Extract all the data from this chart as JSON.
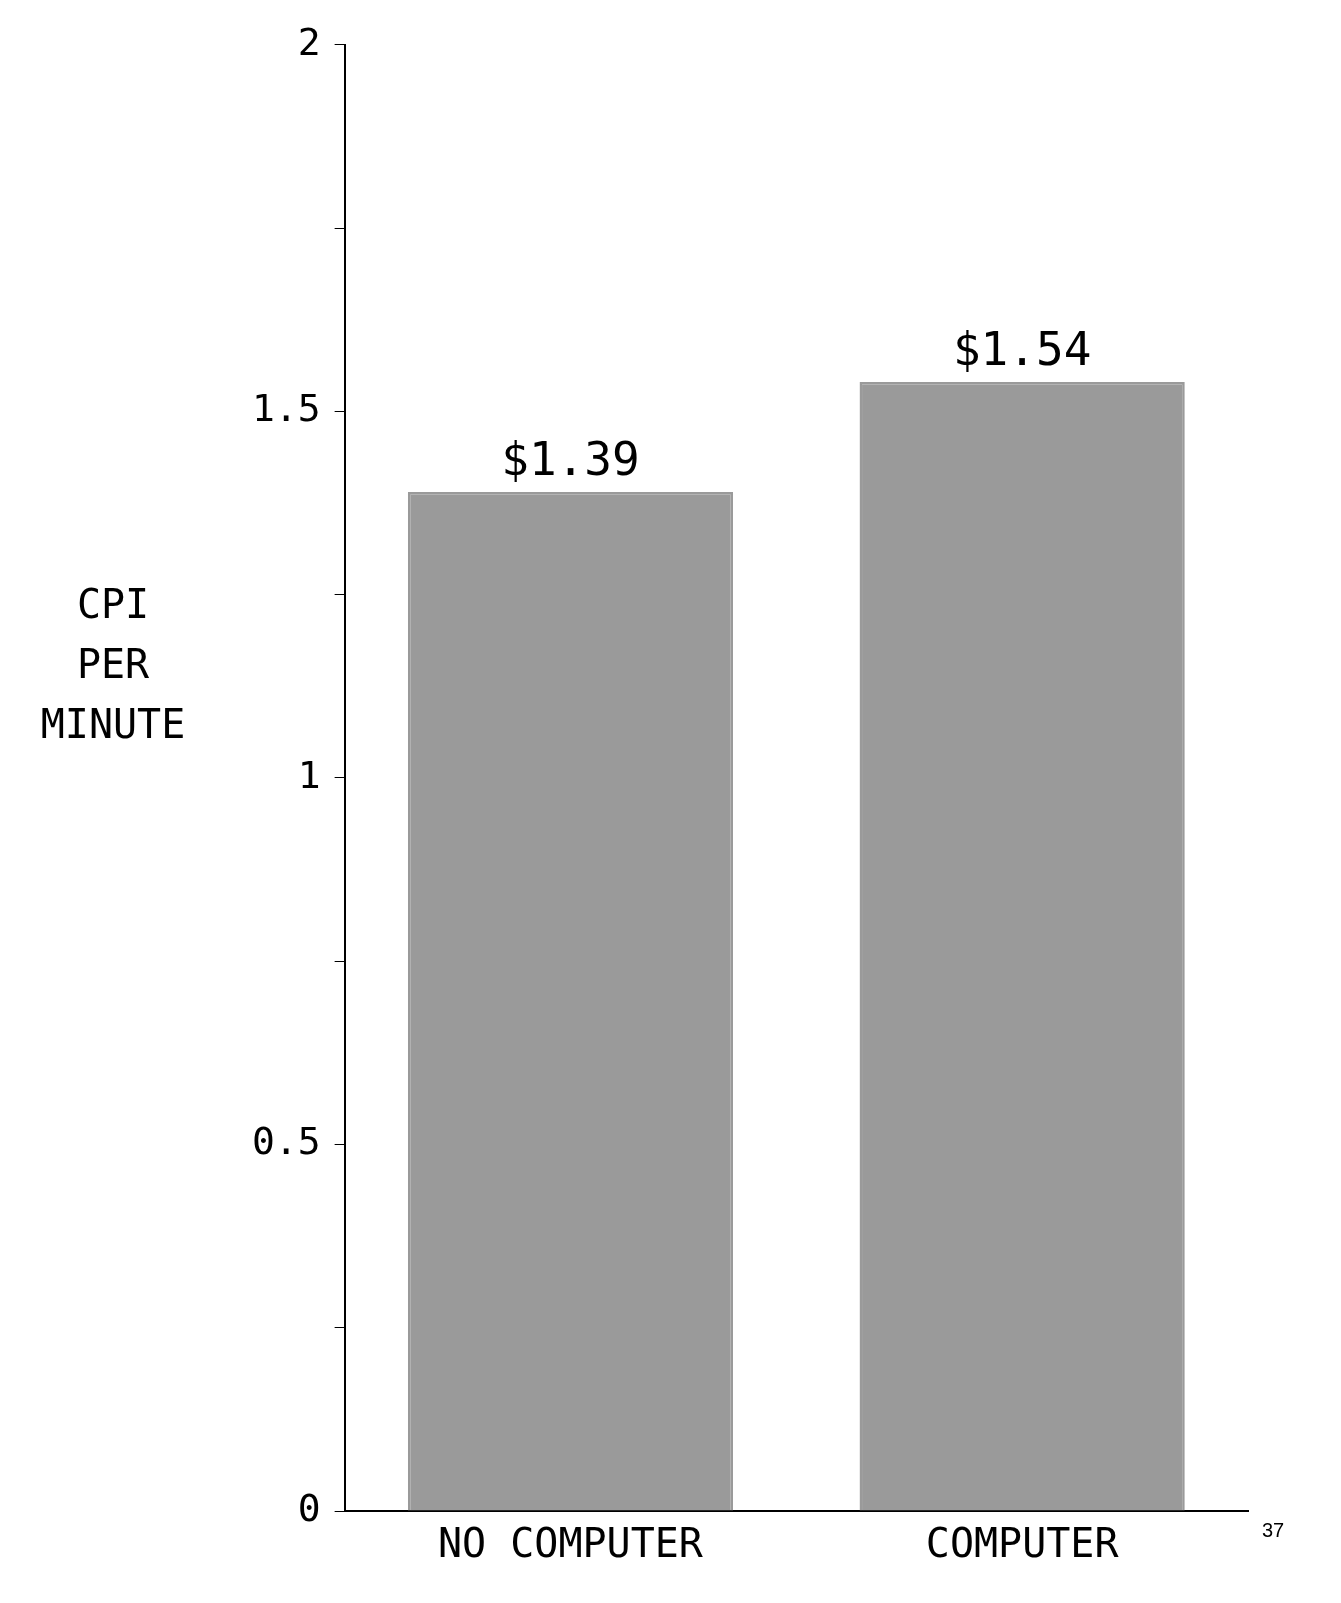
{
  "chart_data": {
    "type": "bar",
    "ylabel": "CPI PER MINUTE",
    "categories": [
      "NO COMPUTER",
      "COMPUTER"
    ],
    "values": [
      1.39,
      1.54
    ],
    "value_labels": [
      "$1.39",
      "$1.54"
    ],
    "color": "#9a9a9a",
    "ylim": [
      0,
      2
    ],
    "yticks": [
      0,
      {
        "value": 0.25,
        "label": null
      },
      0.5,
      {
        "value": 0.75,
        "label": null
      },
      1,
      {
        "value": 1.25,
        "label": null
      },
      1.5,
      {
        "value": 1.75,
        "label": null
      },
      2
    ],
    "grid": false,
    "legend": false,
    "annotations": [
      "37"
    ]
  }
}
